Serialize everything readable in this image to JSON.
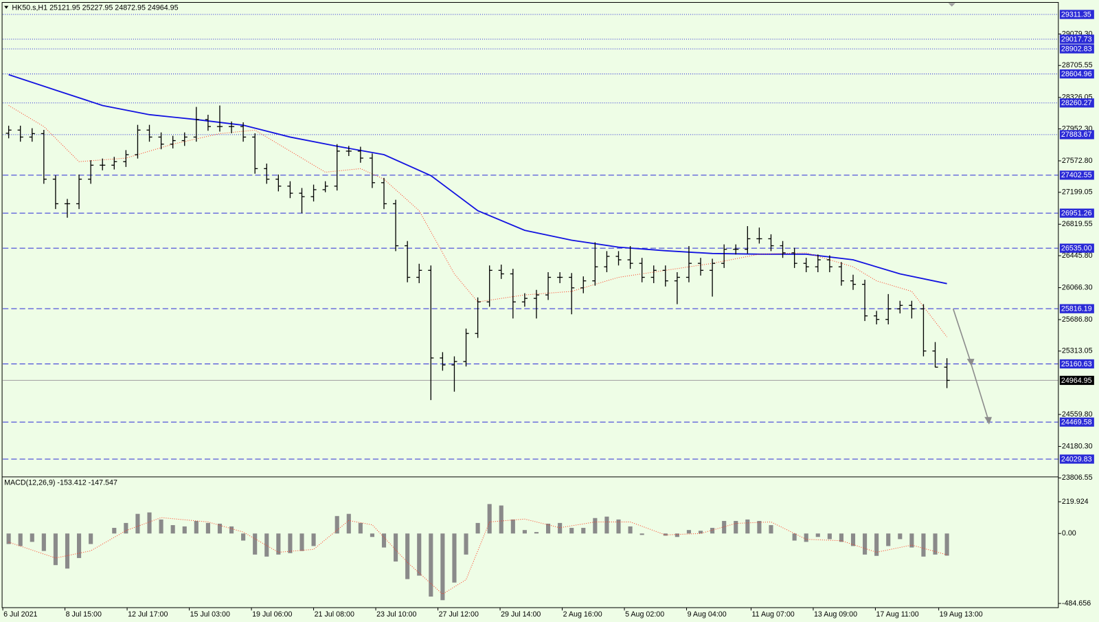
{
  "chart_data": [
    {
      "type": "ohlc",
      "title": "HK50.s,H1  25121.95 25227.95 24872.95 24964.95",
      "bar_color": "#000000",
      "background": "#eefde6",
      "open": [
        27900,
        27938,
        27855,
        27896,
        27355,
        27063,
        27063,
        27355,
        27521,
        27521,
        27563,
        27646,
        27938,
        27855,
        27771,
        27813,
        27855,
        28063,
        27980,
        27980,
        27980,
        27855,
        27480,
        27355,
        27272,
        27188,
        27147,
        27230,
        27272,
        27688,
        27688,
        27605,
        27313,
        27063,
        26564,
        26189,
        26272,
        25231,
        25148,
        25189,
        25522,
        25897,
        26272,
        26230,
        25897,
        25939,
        25980,
        26189,
        26189,
        26064,
        26147,
        26314,
        26438,
        26397,
        26355,
        26189,
        26272,
        26147,
        26189,
        26355,
        26272,
        26355,
        26522,
        26522,
        26647,
        26647,
        26564,
        26480,
        26355,
        26314,
        26397,
        26314,
        26147,
        26106,
        25731,
        25689,
        25814,
        25856,
        25814,
        25314,
        25121.95
      ],
      "high": [
        27990,
        27990,
        27960,
        27940,
        27400,
        27120,
        27410,
        27580,
        27600,
        27620,
        27700,
        28000,
        28000,
        27910,
        27870,
        27910,
        28213,
        28120,
        28230,
        28040,
        28030,
        27900,
        27540,
        27410,
        27330,
        27250,
        27290,
        27330,
        27771,
        27750,
        27740,
        27660,
        27370,
        27110,
        26620,
        26350,
        26330,
        25300,
        25250,
        25580,
        25950,
        26330,
        26340,
        26290,
        26000,
        26040,
        26250,
        26250,
        26240,
        26200,
        26605,
        26500,
        26500,
        26560,
        26420,
        26330,
        26330,
        26250,
        26560,
        26420,
        26410,
        26580,
        26580,
        26797,
        26780,
        26700,
        26620,
        26540,
        26420,
        26460,
        26450,
        26370,
        26220,
        26160,
        25790,
        25990,
        25910,
        25910,
        25870,
        25420,
        25227.95
      ],
      "low": [
        27840,
        27800,
        27800,
        27300,
        27000,
        26897,
        27000,
        27300,
        27460,
        27470,
        27500,
        27600,
        27800,
        27710,
        27720,
        27750,
        27800,
        27930,
        27920,
        27900,
        27800,
        27420,
        27300,
        27210,
        27130,
        26950,
        27090,
        27200,
        27220,
        27630,
        27550,
        27250,
        27000,
        26500,
        26130,
        26120,
        24731,
        25080,
        24831,
        25130,
        25470,
        25840,
        26170,
        25700,
        25840,
        25700,
        25920,
        26120,
        25750,
        26000,
        26090,
        26250,
        26330,
        26290,
        26130,
        26120,
        26080,
        25870,
        26130,
        26210,
        25960,
        26300,
        26460,
        26470,
        26590,
        26500,
        26420,
        26300,
        26250,
        26250,
        26250,
        26090,
        26040,
        25670,
        25630,
        25630,
        25760,
        25700,
        25250,
        25120,
        24872.95
      ],
      "close": [
        27938,
        27855,
        27896,
        27355,
        27063,
        27063,
        27355,
        27521,
        27521,
        27563,
        27646,
        27938,
        27855,
        27771,
        27813,
        27855,
        28063,
        27980,
        27980,
        27980,
        27855,
        27480,
        27355,
        27272,
        27188,
        27147,
        27230,
        27272,
        27688,
        27688,
        27605,
        27313,
        27063,
        26564,
        26189,
        26272,
        25231,
        25148,
        25189,
        25522,
        25897,
        26272,
        26230,
        25897,
        25939,
        25980,
        26189,
        26189,
        26064,
        26147,
        26314,
        26438,
        26397,
        26355,
        26189,
        26272,
        26147,
        26189,
        26355,
        26272,
        26355,
        26522,
        26522,
        26647,
        26647,
        26564,
        26480,
        26355,
        26314,
        26397,
        26314,
        26147,
        26106,
        25731,
        25689,
        25814,
        25856,
        25814,
        25314,
        25121.95,
        24964.95
      ],
      "moving_averages": [
        {
          "color": "#1212e0",
          "style": "solid",
          "x": [
            0,
            4,
            8,
            12,
            16,
            20,
            24,
            28,
            32,
            36,
            40,
            44,
            48,
            52,
            56,
            60,
            64,
            68,
            72,
            76,
            80
          ],
          "values": [
            28596,
            28413,
            28230,
            28121,
            28063,
            27996,
            27855,
            27746,
            27646,
            27397,
            26980,
            26747,
            26630,
            26547,
            26505,
            26472,
            26464,
            26464,
            26397,
            26230,
            26114
          ]
        },
        {
          "color": "#ff3b1f",
          "style": "dotted",
          "x": [
            0,
            3,
            6,
            10,
            14,
            18,
            21,
            24,
            27,
            30,
            32,
            35,
            38,
            40,
            44,
            48,
            52,
            56,
            60,
            64,
            68,
            72,
            74,
            77,
            80
          ],
          "values": [
            28230,
            27980,
            27563,
            27605,
            27771,
            27896,
            27938,
            27688,
            27438,
            27480,
            27355,
            26980,
            26230,
            25897,
            25980,
            26022,
            26189,
            26272,
            26355,
            26464,
            26480,
            26314,
            26147,
            26022,
            25481
          ]
        }
      ],
      "xlim": [
        -0.5,
        89.5
      ],
      "xticks": [
        {
          "value": -0.5,
          "label": "6 Jul 2021"
        },
        {
          "value": 4.8,
          "label": "8 Jul 15:00"
        },
        {
          "value": 10.1,
          "label": "12 Jul 17:00"
        },
        {
          "value": 15.4,
          "label": "15 Jul 03:00"
        },
        {
          "value": 20.7,
          "label": "19 Jul 06:00"
        },
        {
          "value": 26.0,
          "label": "21 Jul 08:00"
        },
        {
          "value": 31.3,
          "label": "23 Jul 10:00"
        },
        {
          "value": 36.6,
          "label": "27 Jul 12:00"
        },
        {
          "value": 41.9,
          "label": "29 Jul 14:00"
        },
        {
          "value": 47.2,
          "label": "2 Aug 16:00"
        },
        {
          "value": 52.5,
          "label": "5 Aug 02:00"
        },
        {
          "value": 57.8,
          "label": "9 Aug 04:00"
        },
        {
          "value": 63.3,
          "label": "11 Aug 07:00"
        },
        {
          "value": 68.6,
          "label": "13 Aug 09:00"
        },
        {
          "value": 73.9,
          "label": "17 Aug 11:00"
        },
        {
          "value": 79.3,
          "label": "19 Aug 13:00"
        }
      ],
      "ylim": [
        23823,
        29446
      ],
      "yticks": [
        {
          "value": 29079.3,
          "label": "29079.30"
        },
        28705.55,
        28326.05,
        {
          "value": 27952.3,
          "label": "27952.30"
        },
        {
          "value": 27572.8,
          "label": "27572.80"
        },
        27199.05,
        26819.55,
        {
          "value": 26445.8,
          "label": "26445.80"
        },
        {
          "value": 26066.3,
          "label": "26066.30"
        },
        {
          "value": 25686.8,
          "label": "25686.80"
        },
        25313.05,
        {
          "value": 24559.8,
          "label": "24559.80"
        },
        {
          "value": 24180.3,
          "label": "24180.30"
        },
        23806.55
      ],
      "level_color": "#2a2ad6",
      "levels": [
        {
          "value": 29311.35,
          "style": "dotted"
        },
        {
          "value": 29017.73,
          "style": "dotted"
        },
        {
          "value": 28902.83,
          "style": "dotted"
        },
        {
          "value": 28604.96,
          "style": "dotted"
        },
        {
          "value": 28260.27,
          "style": "dotted"
        },
        {
          "value": 27883.67,
          "style": "dotted"
        },
        {
          "value": 27402.55,
          "style": "dashed"
        },
        {
          "value": 26951.26,
          "style": "dashed"
        },
        {
          "value": 26535,
          "label": "26535.00",
          "style": "dashed"
        },
        {
          "value": 25816.19,
          "style": "dashed"
        },
        {
          "value": 25160.63,
          "style": "dashed"
        },
        {
          "value": 24469.58,
          "style": "dashed"
        },
        {
          "value": 24029.83,
          "style": "dashed"
        }
      ],
      "current": 24964.95,
      "current_color": "#a8a8a8"
    },
    {
      "type": "bar",
      "title": "MACD(12,26,9) -153.412 -147.547",
      "color": "#8a8a8a",
      "values": [
        -73,
        -87,
        -58,
        -121,
        -219,
        -243,
        -170,
        -73,
        0,
        39,
        73,
        136,
        146,
        97,
        58,
        49,
        87,
        73,
        68,
        49,
        -49,
        -146,
        -160,
        -146,
        -136,
        -121,
        -87,
        0,
        121,
        136,
        73,
        -24,
        -97,
        -194,
        -316,
        -292,
        -437,
        -462,
        -340,
        -146,
        73,
        204,
        194,
        97,
        24,
        10,
        68,
        73,
        39,
        39,
        107,
        117,
        97,
        49,
        -10,
        0,
        -15,
        -24,
        24,
        19,
        39,
        87,
        87,
        97,
        87,
        58,
        0,
        -49,
        -58,
        -24,
        -39,
        -58,
        -87,
        -146,
        -155,
        -87,
        -39,
        -97,
        -160,
        -146,
        -153.412
      ],
      "signal": {
        "color": "#ff3b1f",
        "style": "dotted",
        "x": [
          0,
          4,
          7,
          10,
          13,
          17,
          20,
          23,
          26,
          29,
          31,
          34,
          37,
          39,
          41,
          44,
          47,
          50,
          53,
          56,
          59,
          62,
          65,
          68,
          71,
          74,
          77,
          80
        ],
        "values": [
          -60,
          -170,
          -120,
          20,
          110,
          80,
          10,
          -130,
          -110,
          90,
          60,
          -200,
          -420,
          -320,
          80,
          100,
          40,
          80,
          80,
          -10,
          0,
          70,
          80,
          -40,
          -50,
          -130,
          -80,
          -147.547
        ]
      },
      "ylim": [
        -513.8,
        385.1
      ],
      "yticks": [
        219.924,
        {
          "value": 0,
          "label": "0.00"
        },
        -484.656
      ]
    }
  ]
}
